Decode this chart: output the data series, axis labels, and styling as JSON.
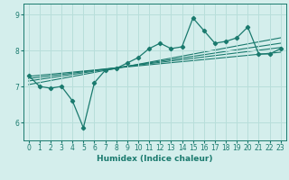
{
  "xlabel": "Humidex (Indice chaleur)",
  "ylabel": "",
  "bg_color": "#d4eeec",
  "grid_color": "#b8deda",
  "line_color": "#1a7a6e",
  "xlim": [
    -0.5,
    23.5
  ],
  "ylim": [
    5.5,
    9.3
  ],
  "yticks": [
    6,
    7,
    8,
    9
  ],
  "xticks": [
    0,
    1,
    2,
    3,
    4,
    5,
    6,
    7,
    8,
    9,
    10,
    11,
    12,
    13,
    14,
    15,
    16,
    17,
    18,
    19,
    20,
    21,
    22,
    23
  ],
  "series": [
    [
      0,
      7.3
    ],
    [
      1,
      7.0
    ],
    [
      2,
      6.95
    ],
    [
      3,
      7.0
    ],
    [
      4,
      6.6
    ],
    [
      5,
      5.85
    ],
    [
      6,
      7.1
    ],
    [
      7,
      7.45
    ],
    [
      8,
      7.5
    ],
    [
      9,
      7.65
    ],
    [
      10,
      7.8
    ],
    [
      11,
      8.05
    ],
    [
      12,
      8.2
    ],
    [
      13,
      8.05
    ],
    [
      14,
      8.1
    ],
    [
      15,
      8.9
    ],
    [
      16,
      8.55
    ],
    [
      17,
      8.2
    ],
    [
      18,
      8.25
    ],
    [
      19,
      8.35
    ],
    [
      20,
      8.65
    ],
    [
      21,
      7.9
    ],
    [
      22,
      7.9
    ],
    [
      23,
      8.05
    ]
  ],
  "trend_lines": [
    [
      [
        0,
        23
      ],
      [
        7.05,
        8.35
      ]
    ],
    [
      [
        0,
        23
      ],
      [
        7.15,
        8.2
      ]
    ],
    [
      [
        0,
        23
      ],
      [
        7.22,
        8.08
      ]
    ],
    [
      [
        0,
        23
      ],
      [
        7.28,
        7.95
      ]
    ]
  ]
}
